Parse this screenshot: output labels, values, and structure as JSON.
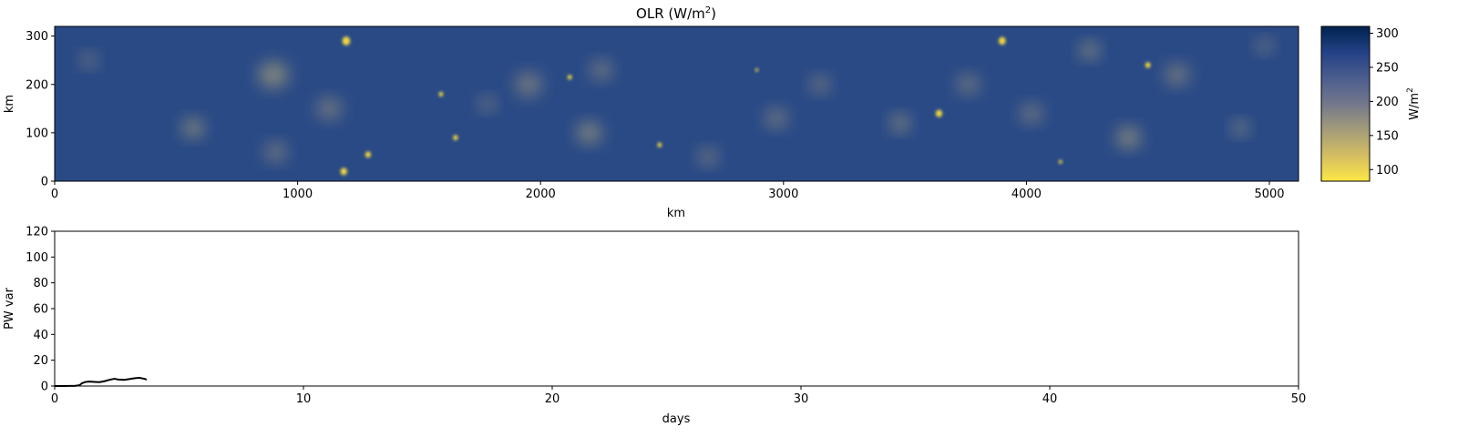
{
  "chart_data": [
    {
      "type": "heatmap",
      "title": "OLR (W/m",
      "title_superscript": "2",
      "title_suffix": ")",
      "xlabel": "km",
      "ylabel": "km",
      "xlim": [
        0,
        5120
      ],
      "ylim": [
        0,
        320
      ],
      "xticks": [
        0,
        1000,
        2000,
        3000,
        4000,
        5000
      ],
      "yticks": [
        0,
        100,
        200,
        300
      ],
      "colorbar": {
        "label": "W/m",
        "label_superscript": "2",
        "range": [
          83,
          310
        ],
        "ticks": [
          100,
          150,
          200,
          250,
          300
        ],
        "colors": [
          "#fde745",
          "#d4bd62",
          "#a39c7a",
          "#73778c",
          "#4b5d8e",
          "#234186",
          "#00224e"
        ]
      },
      "cold_cloud_cores": [
        {
          "x": 1200,
          "y": 290,
          "r": 18
        },
        {
          "x": 3900,
          "y": 290,
          "r": 16
        },
        {
          "x": 1590,
          "y": 180,
          "r": 10
        },
        {
          "x": 2120,
          "y": 215,
          "r": 10
        },
        {
          "x": 1650,
          "y": 90,
          "r": 11
        },
        {
          "x": 2490,
          "y": 75,
          "r": 10
        },
        {
          "x": 1290,
          "y": 55,
          "r": 13
        },
        {
          "x": 1190,
          "y": 20,
          "r": 15
        },
        {
          "x": 4500,
          "y": 240,
          "r": 12
        },
        {
          "x": 3640,
          "y": 140,
          "r": 15
        },
        {
          "x": 2890,
          "y": 230,
          "r": 7
        },
        {
          "x": 4140,
          "y": 40,
          "r": 8
        }
      ],
      "warm_cloud_patches": [
        {
          "x": 900,
          "y": 220,
          "r": 55
        },
        {
          "x": 910,
          "y": 60,
          "r": 40
        },
        {
          "x": 1130,
          "y": 150,
          "r": 45
        },
        {
          "x": 570,
          "y": 110,
          "r": 40
        },
        {
          "x": 1950,
          "y": 200,
          "r": 50
        },
        {
          "x": 2250,
          "y": 230,
          "r": 40
        },
        {
          "x": 2200,
          "y": 100,
          "r": 45
        },
        {
          "x": 2970,
          "y": 130,
          "r": 40
        },
        {
          "x": 3150,
          "y": 200,
          "r": 35
        },
        {
          "x": 3480,
          "y": 120,
          "r": 35
        },
        {
          "x": 3760,
          "y": 200,
          "r": 40
        },
        {
          "x": 4020,
          "y": 140,
          "r": 40
        },
        {
          "x": 4420,
          "y": 90,
          "r": 45
        },
        {
          "x": 4620,
          "y": 220,
          "r": 45
        },
        {
          "x": 4980,
          "y": 280,
          "r": 30
        },
        {
          "x": 4260,
          "y": 270,
          "r": 35
        },
        {
          "x": 2690,
          "y": 50,
          "r": 35
        },
        {
          "x": 1780,
          "y": 160,
          "r": 30
        },
        {
          "x": 4880,
          "y": 110,
          "r": 30
        },
        {
          "x": 140,
          "y": 250,
          "r": 30
        }
      ]
    },
    {
      "type": "line",
      "title": "",
      "xlabel": "days",
      "ylabel": "PW var",
      "xlim": [
        0,
        50
      ],
      "ylim": [
        0,
        120
      ],
      "xticks": [
        0,
        10,
        20,
        30,
        40,
        50
      ],
      "yticks": [
        0,
        20,
        40,
        60,
        80,
        100,
        120
      ],
      "series": [
        {
          "color": "#000000",
          "x": [
            0,
            0.2,
            0.4,
            0.6,
            0.8,
            1.0,
            1.1,
            1.25,
            1.4,
            1.6,
            1.8,
            2.0,
            2.2,
            2.4,
            2.6,
            2.8,
            3.0,
            3.2,
            3.4,
            3.6,
            3.7
          ],
          "y": [
            0,
            0,
            0,
            0.05,
            0.1,
            0.6,
            2.2,
            3.2,
            3.4,
            3.2,
            3.0,
            3.7,
            4.8,
            5.6,
            4.9,
            4.8,
            5.4,
            6.0,
            6.4,
            5.6,
            5.0
          ]
        }
      ]
    }
  ]
}
